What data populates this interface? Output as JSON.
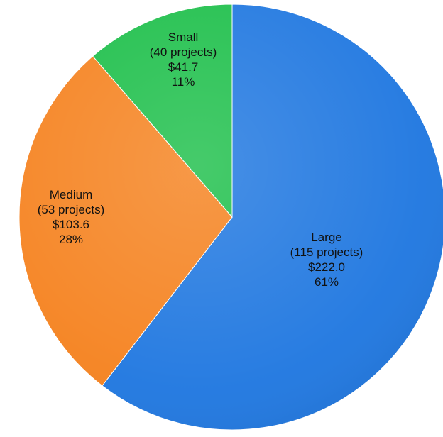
{
  "chart_data": {
    "type": "pie",
    "slices": [
      {
        "category": "Large",
        "projects_label": "(115 projects)",
        "amount_label": "$222.0",
        "percent_label": "61%",
        "projects": 115,
        "amount": 222.0,
        "percent": 61,
        "color": "#1f77e0"
      },
      {
        "category": "Medium",
        "projects_label": "(53 projects)",
        "amount_label": "$103.6",
        "percent_label": "28%",
        "projects": 53,
        "amount": 103.6,
        "percent": 28,
        "color": "#f5821f"
      },
      {
        "category": "Small",
        "projects_label": "(40 projects)",
        "amount_label": "$41.7",
        "percent_label": "11%",
        "projects": 40,
        "amount": 41.7,
        "percent": 11,
        "color": "#1dbf4a"
      }
    ],
    "start": "12 o'clock",
    "direction": "clockwise",
    "legend": "none"
  }
}
